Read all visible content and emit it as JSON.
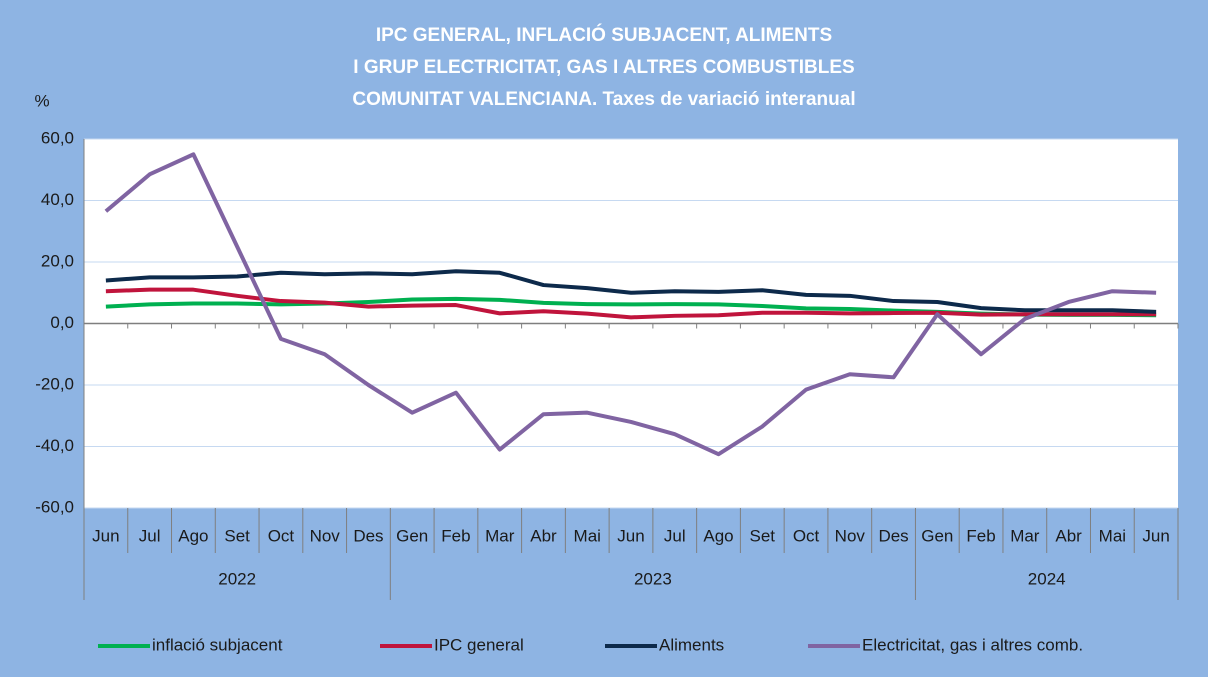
{
  "chart_data": {
    "type": "line",
    "title": [
      "IPC GENERAL, INFLACIÓ SUBJACENT,  ALIMENTS",
      "I GRUP ELECTRICITAT, GAS I ALTRES COMBUSTIBLES",
      "COMUNITAT VALENCIANA. Taxes de variació interanual"
    ],
    "y_label": "%",
    "categories": [
      "Jun",
      "Jul",
      "Ago",
      "Set",
      "Oct",
      "Nov",
      "Des",
      "Gen",
      "Feb",
      "Mar",
      "Abr",
      "Mai",
      "Jun",
      "Jul",
      "Ago",
      "Set",
      "Oct",
      "Nov",
      "Des",
      "Gen",
      "Feb",
      "Mar",
      "Abr",
      "Mai",
      "Jun"
    ],
    "groups": [
      {
        "label": "2022",
        "span": 7
      },
      {
        "label": "2023",
        "span": 12
      },
      {
        "label": "2024",
        "span": 6
      }
    ],
    "ylim": [
      -60,
      60
    ],
    "yticks": [
      {
        "value": -60,
        "label": "-60,0"
      },
      {
        "value": -40,
        "label": "-40,0"
      },
      {
        "value": -20,
        "label": "-20,0"
      },
      {
        "value": 0,
        "label": "0,0"
      },
      {
        "value": 20,
        "label": "20,0"
      },
      {
        "value": 40,
        "label": "40,0"
      },
      {
        "value": 60,
        "label": "60,0"
      }
    ],
    "grid": true,
    "legend": "bottom",
    "series": [
      {
        "name": "inflació subjacent",
        "color": "#00b050",
        "values": [
          5.5,
          6.2,
          6.5,
          6.5,
          6.2,
          6.5,
          7,
          7.8,
          8,
          7.7,
          6.7,
          6.3,
          6.2,
          6.3,
          6.2,
          5.7,
          4.9,
          4.7,
          4.2,
          3.8,
          3.2,
          2.9,
          2.8,
          2.8,
          2.7
        ]
      },
      {
        "name": "IPC general",
        "color": "#c0143c",
        "values": [
          10.5,
          11,
          11,
          9,
          7.3,
          6.8,
          5.5,
          5.8,
          6,
          3.3,
          4,
          3.2,
          2,
          2.5,
          2.7,
          3.5,
          3.5,
          3.3,
          3.4,
          3.5,
          2.9,
          3,
          3,
          3,
          3
        ]
      },
      {
        "name": "Aliments",
        "color": "#0d2a4b",
        "values": [
          14,
          15,
          15,
          15.3,
          16.5,
          16,
          16.3,
          16,
          17,
          16.5,
          12.5,
          11.5,
          10,
          10.5,
          10.3,
          10.8,
          9.3,
          9,
          7.3,
          7,
          5,
          4.3,
          4.3,
          4.3,
          3.8
        ]
      },
      {
        "name": "Electricitat, gas i altres comb.",
        "color": "#8064a2",
        "values": [
          36.5,
          48.5,
          55,
          25,
          -5,
          -10,
          -20,
          -29,
          -22.5,
          -41,
          -29.5,
          -29,
          -32,
          -36,
          -42.5,
          -33.5,
          -21.5,
          -16.5,
          -17.5,
          3,
          -10,
          1.5,
          7,
          10.5,
          10
        ]
      }
    ]
  }
}
